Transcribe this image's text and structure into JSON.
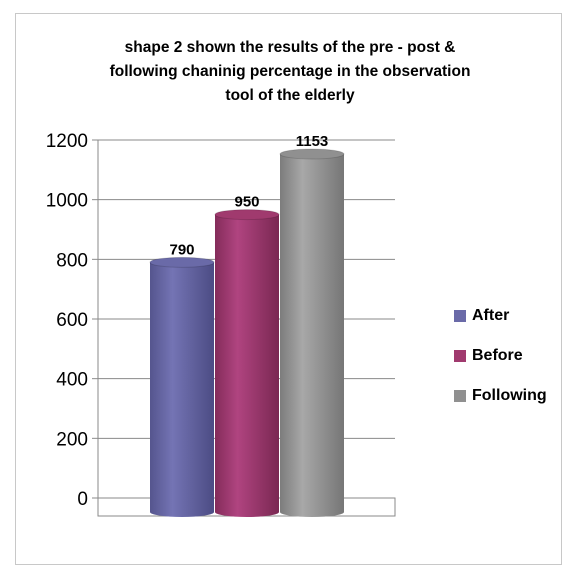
{
  "chart_data": {
    "type": "bar",
    "title_lines": [
      "shape 2 shown the results of the pre - post &",
      "following chaninig percentage in the observation",
      "tool of the elderly"
    ],
    "categories": [
      "After",
      "Before",
      "Following"
    ],
    "values": [
      790,
      950,
      1153
    ],
    "colors": [
      "#6a6aa8",
      "#a03a6e",
      "#909090"
    ],
    "ylim": [
      0,
      1200
    ],
    "yticks": [
      "0",
      "200",
      "400",
      "600",
      "800",
      "1000",
      "1200"
    ],
    "legend_position": "right",
    "grid": true
  }
}
